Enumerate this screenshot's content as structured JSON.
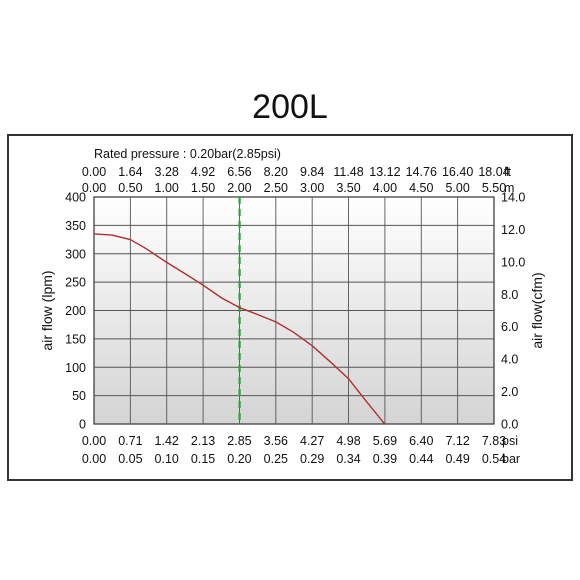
{
  "title": "200L",
  "chart_data": {
    "type": "line",
    "title": "200L",
    "subtitle": "Rated pressure : 0.20bar(2.85psi)",
    "ylabel": "air flow (lpm)",
    "ylabel_right": "air flow(cfm)",
    "ylim": [
      0,
      400
    ],
    "yticks": [
      "0",
      "50",
      "100",
      "150",
      "200",
      "250",
      "300",
      "350",
      "400"
    ],
    "y2lim": [
      0,
      14
    ],
    "y2ticks": [
      "0.0",
      "2.0",
      "4.0",
      "6.0",
      "8.0",
      "10.0",
      "12.0",
      "14.0"
    ],
    "xlim": [
      0,
      7.83
    ],
    "x_psi_ticks": [
      "0.00",
      "0.71",
      "1.42",
      "2.13",
      "2.85",
      "3.56",
      "4.27",
      "4.98",
      "5.69",
      "6.40",
      "7.12",
      "7.83"
    ],
    "x_psi_unit": "psi",
    "x_bar_ticks": [
      "0.00",
      "0.05",
      "0.10",
      "0.15",
      "0.20",
      "0.25",
      "0.29",
      "0.34",
      "0.39",
      "0.44",
      "0.49",
      "0.54"
    ],
    "x_bar_unit": "bar",
    "top_ft_ticks": [
      "0.00",
      "1.64",
      "3.28",
      "4.92",
      "6.56",
      "8.20",
      "9.84",
      "11.48",
      "13.12",
      "14.76",
      "16.40",
      "18.04"
    ],
    "top_ft_unit": "ft",
    "top_m_ticks": [
      "0.00",
      "0.50",
      "1.00",
      "1.50",
      "2.00",
      "2.50",
      "3.00",
      "3.50",
      "4.00",
      "4.50",
      "5.00",
      "5.50"
    ],
    "top_m_unit": "m",
    "grid": true,
    "rated_pressure_psi": 2.85,
    "series": [
      {
        "color": "#b0302a",
        "x": [
          0.0,
          0.35,
          0.71,
          1.0,
          1.42,
          1.78,
          2.13,
          2.5,
          2.85,
          3.2,
          3.56,
          3.9,
          4.27,
          4.62,
          4.98,
          5.33,
          5.69
        ],
        "y": [
          335,
          333,
          325,
          310,
          285,
          265,
          245,
          222,
          205,
          193,
          180,
          162,
          138,
          110,
          80,
          40,
          0
        ]
      }
    ],
    "colors": {
      "curve": "#b0302a",
      "rated_line": "#27a33a",
      "grid": "#555555"
    }
  }
}
